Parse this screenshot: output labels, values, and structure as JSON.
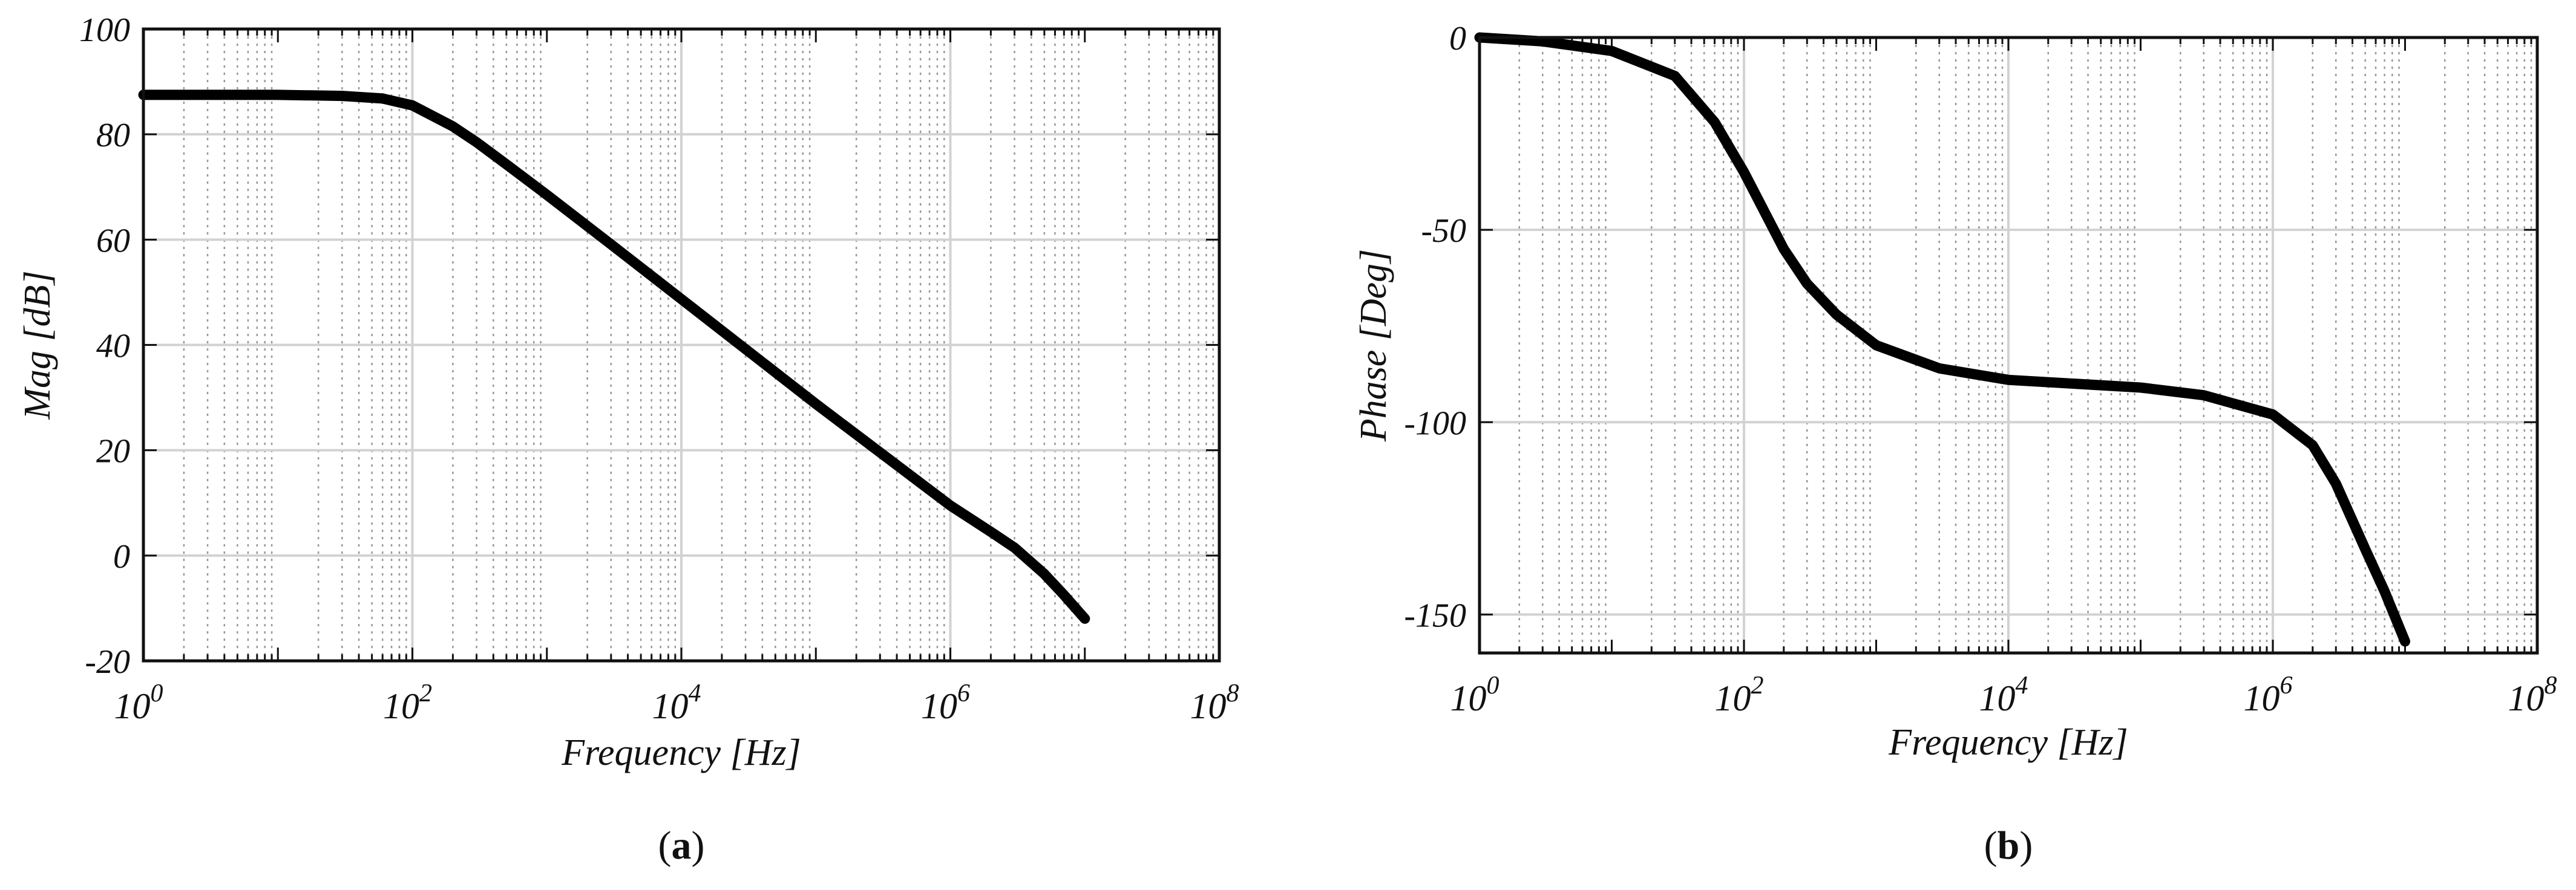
{
  "chart_data": [
    {
      "type": "line",
      "panel_label": "a",
      "xlabel": "Frequency [Hz]",
      "ylabel": "Mag [dB]",
      "xscale": "log",
      "xlim": [
        1,
        100000000
      ],
      "ylim": [
        -20,
        100
      ],
      "x_ticks": [
        {
          "value": 1,
          "base": "10",
          "exp": "0"
        },
        {
          "value": 100,
          "base": "10",
          "exp": "2"
        },
        {
          "value": 10000,
          "base": "10",
          "exp": "4"
        },
        {
          "value": 1000000,
          "base": "10",
          "exp": "6"
        },
        {
          "value": 100000000,
          "base": "10",
          "exp": "8"
        }
      ],
      "y_ticks": [
        "-20",
        "0",
        "20",
        "40",
        "60",
        "80",
        "100"
      ],
      "grid": true,
      "minor_grid": true,
      "series": [
        {
          "color": "#000000",
          "x": [
            1,
            10,
            30,
            60,
            100,
            200,
            300,
            500,
            1000,
            3000,
            10000,
            100000,
            1000000,
            2000000,
            3000000,
            5000000,
            7000000,
            10000000
          ],
          "y": [
            87.5,
            87.5,
            87.3,
            86.8,
            85.5,
            81.5,
            78.5,
            74.3,
            68.5,
            59.1,
            48.7,
            28.8,
            9.5,
            4.5,
            1.5,
            -3.5,
            -7.5,
            -12.0
          ]
        }
      ]
    },
    {
      "type": "line",
      "panel_label": "b",
      "xlabel": "Frequency [Hz]",
      "ylabel": "Phase [Deg]",
      "xscale": "log",
      "xlim": [
        1,
        100000000
      ],
      "ylim": [
        -160,
        0
      ],
      "x_ticks": [
        {
          "value": 1,
          "base": "10",
          "exp": "0"
        },
        {
          "value": 100,
          "base": "10",
          "exp": "2"
        },
        {
          "value": 10000,
          "base": "10",
          "exp": "4"
        },
        {
          "value": 1000000,
          "base": "10",
          "exp": "6"
        },
        {
          "value": 100000000,
          "base": "10",
          "exp": "8"
        }
      ],
      "y_ticks": [
        "-150",
        "-100",
        "-50",
        "0"
      ],
      "grid": true,
      "minor_grid": true,
      "series": [
        {
          "color": "#000000",
          "x": [
            1,
            3,
            10,
            30,
            60,
            100,
            200,
            300,
            500,
            1000,
            3000,
            10000,
            100000,
            300000,
            1000000,
            2000000,
            3000000,
            5000000,
            7000000,
            10000000
          ],
          "y": [
            0,
            -1.0,
            -3.5,
            -10,
            -22,
            -35,
            -55,
            -64,
            -72,
            -80,
            -86,
            -89,
            -91,
            -93,
            -98,
            -106,
            -116,
            -133,
            -144,
            -157
          ]
        }
      ]
    }
  ]
}
